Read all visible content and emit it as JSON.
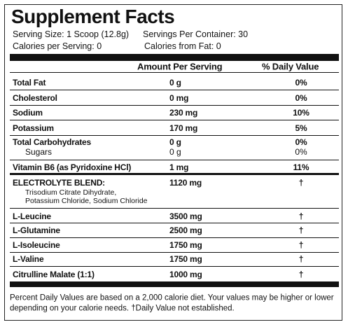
{
  "header": {
    "title": "Supplement Facts",
    "serving_size": "Serving Size: 1 Scoop (12.8g)",
    "servings_per_container": "Servings Per Container: 30",
    "calories": "Calories per Serving: 0",
    "calories_from_fat": "Calories from Fat: 0"
  },
  "table": {
    "columns": [
      "Amount Per Serving",
      "% Daily Value"
    ],
    "rows": [
      {
        "name": "Total Fat",
        "amount": "0 g",
        "daily_value": "0%"
      },
      {
        "name": "Cholesterol",
        "amount": "0 mg",
        "daily_value": "0%"
      },
      {
        "name": "Sodium",
        "amount": "230 mg",
        "daily_value": "10%"
      },
      {
        "name": "Potassium",
        "amount": "170 mg",
        "daily_value": "5%"
      },
      {
        "name": "Total Carbohydrates",
        "amount": "0 g",
        "daily_value": "0%"
      },
      {
        "name": "Sugars",
        "amount": "0 g",
        "daily_value": "0%"
      },
      {
        "name": "Vitamin B6 (as Pyridoxine HCl)",
        "amount": "1 mg",
        "daily_value": "11%"
      },
      {
        "name": "ELECTROLYTE BLEND:",
        "amount": "1120 mg",
        "daily_value": "†",
        "ingredients": [
          "Trisodium Citrate Dihydrate,",
          "Potassium Chloride, Sodium Chloride"
        ]
      },
      {
        "name": "L-Leucine",
        "amount": "3500 mg",
        "daily_value": "†"
      },
      {
        "name": "L-Glutamine",
        "amount": "2500 mg",
        "daily_value": "†"
      },
      {
        "name": "L-Isoleucine",
        "amount": "1750 mg",
        "daily_value": "†"
      },
      {
        "name": "L-Valine",
        "amount": "1750 mg",
        "daily_value": "†"
      },
      {
        "name": "Citrulline Malate (1:1)",
        "amount": "1000 mg",
        "daily_value": "†"
      }
    ]
  },
  "footnote": [
    "Percent Daily Values are based on a 2,000 calorie diet. Your values may be higher or lower",
    "depending on your calorie needs. †Daily Value not established."
  ]
}
